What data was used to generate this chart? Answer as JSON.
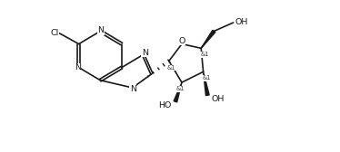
{
  "bg_color": "#ffffff",
  "line_color": "#1a1a1a",
  "line_width": 1.2,
  "font_size": 6.8,
  "fig_width": 3.74,
  "fig_height": 1.68,
  "dpi": 100,
  "xlim": [
    0,
    10.5
  ],
  "ylim": [
    -2.2,
    4.8
  ]
}
